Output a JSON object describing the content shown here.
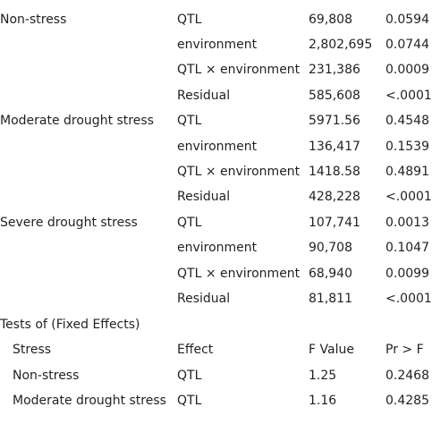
{
  "top_rows": [
    {
      "stress": "Non-stress",
      "effect": "QTL",
      "estimate": "69,808",
      "p": "0.0594"
    },
    {
      "stress": "",
      "effect": "environment",
      "estimate": "2,802,695",
      "p": "0.0744"
    },
    {
      "stress": "",
      "effect": "QTL × environment",
      "estimate": "231,386",
      "p": "0.0009"
    },
    {
      "stress": "",
      "effect": "Residual",
      "estimate": "585,608",
      "p": "<.0001"
    },
    {
      "stress": "Moderate drought stress",
      "effect": "QTL",
      "estimate": "5971.56",
      "p": "0.4548"
    },
    {
      "stress": "",
      "effect": "environment",
      "estimate": "136,417",
      "p": "0.1539"
    },
    {
      "stress": "",
      "effect": "QTL × environment",
      "estimate": "1418.58",
      "p": "0.4891"
    },
    {
      "stress": "",
      "effect": "Residual",
      "estimate": "428,228",
      "p": "<.0001"
    },
    {
      "stress": "Severe drought stress",
      "effect": "QTL",
      "estimate": "107,741",
      "p": "0.0013"
    },
    {
      "stress": "",
      "effect": "environment",
      "estimate": "90,708",
      "p": "0.1047"
    },
    {
      "stress": "",
      "effect": "QTL × environment",
      "estimate": "68,940",
      "p": "0.0099"
    },
    {
      "stress": "",
      "effect": "Residual",
      "estimate": "81,811",
      "p": "<.0001"
    }
  ],
  "section_title": "Tests of (Fixed Effects)",
  "fixed_header": {
    "stress": "Stress",
    "effect": "Effect",
    "f_value": "F Value",
    "p": "Pr > F"
  },
  "fixed_rows": [
    {
      "stress": "Non-stress",
      "effect": "QTL",
      "f_value": "1.25",
      "p": "0.2468"
    },
    {
      "stress": "Moderate drought stress",
      "effect": "QTL",
      "f_value": "1.16",
      "p": "0.4285"
    }
  ]
}
